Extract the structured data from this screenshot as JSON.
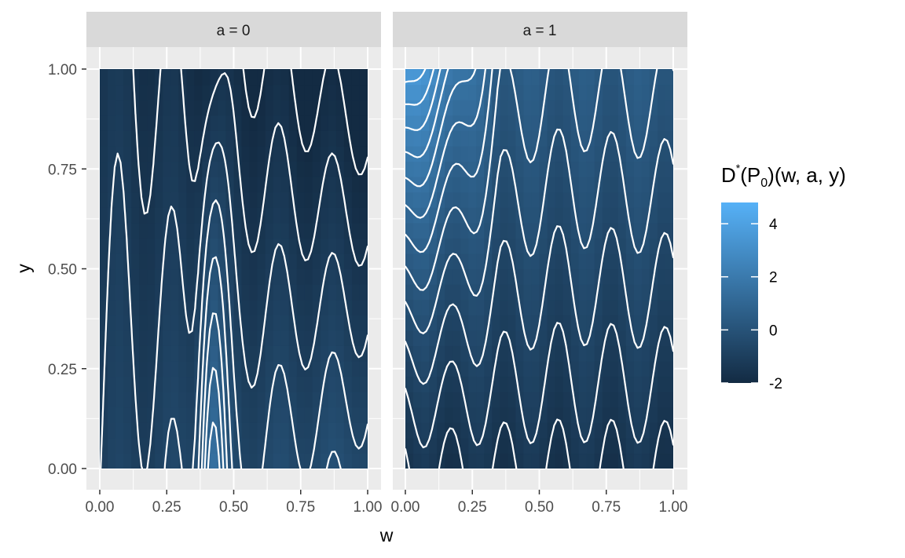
{
  "chart_data": {
    "type": "heatmap",
    "layout": "faceted",
    "facet_variable": "a",
    "facets": [
      {
        "label": "a = 0",
        "a": 0
      },
      {
        "label": "a = 1",
        "a": 1
      }
    ],
    "xlabel": "w",
    "ylabel": "y",
    "xlim": [
      0,
      1
    ],
    "ylim": [
      0,
      1
    ],
    "x_ticks": [
      0.0,
      0.25,
      0.5,
      0.75,
      1.0
    ],
    "x_tick_labels": [
      "0.00",
      "0.25",
      "0.50",
      "0.75",
      "1.00"
    ],
    "y_ticks": [
      0.0,
      0.25,
      0.5,
      0.75,
      1.0
    ],
    "y_tick_labels": [
      "0.00",
      "0.25",
      "0.50",
      "0.75",
      "1.00"
    ],
    "grid": true,
    "contours": true,
    "contour_color": "#ffffff",
    "legend": {
      "title_parts": {
        "D": "D",
        "star": "*",
        "P": "P",
        "zero": "0",
        "args": "(w,  a,  y)"
      },
      "placement": "right",
      "range": [
        -2,
        4.8
      ],
      "breaks": [
        -2,
        0,
        2,
        4
      ],
      "break_labels": [
        "-2",
        "0",
        "2",
        "4"
      ],
      "low_color": "#132B43",
      "high_color": "#56B1F7"
    },
    "panel_background": "#ebebeb",
    "strip_background": "#d9d9d9"
  }
}
